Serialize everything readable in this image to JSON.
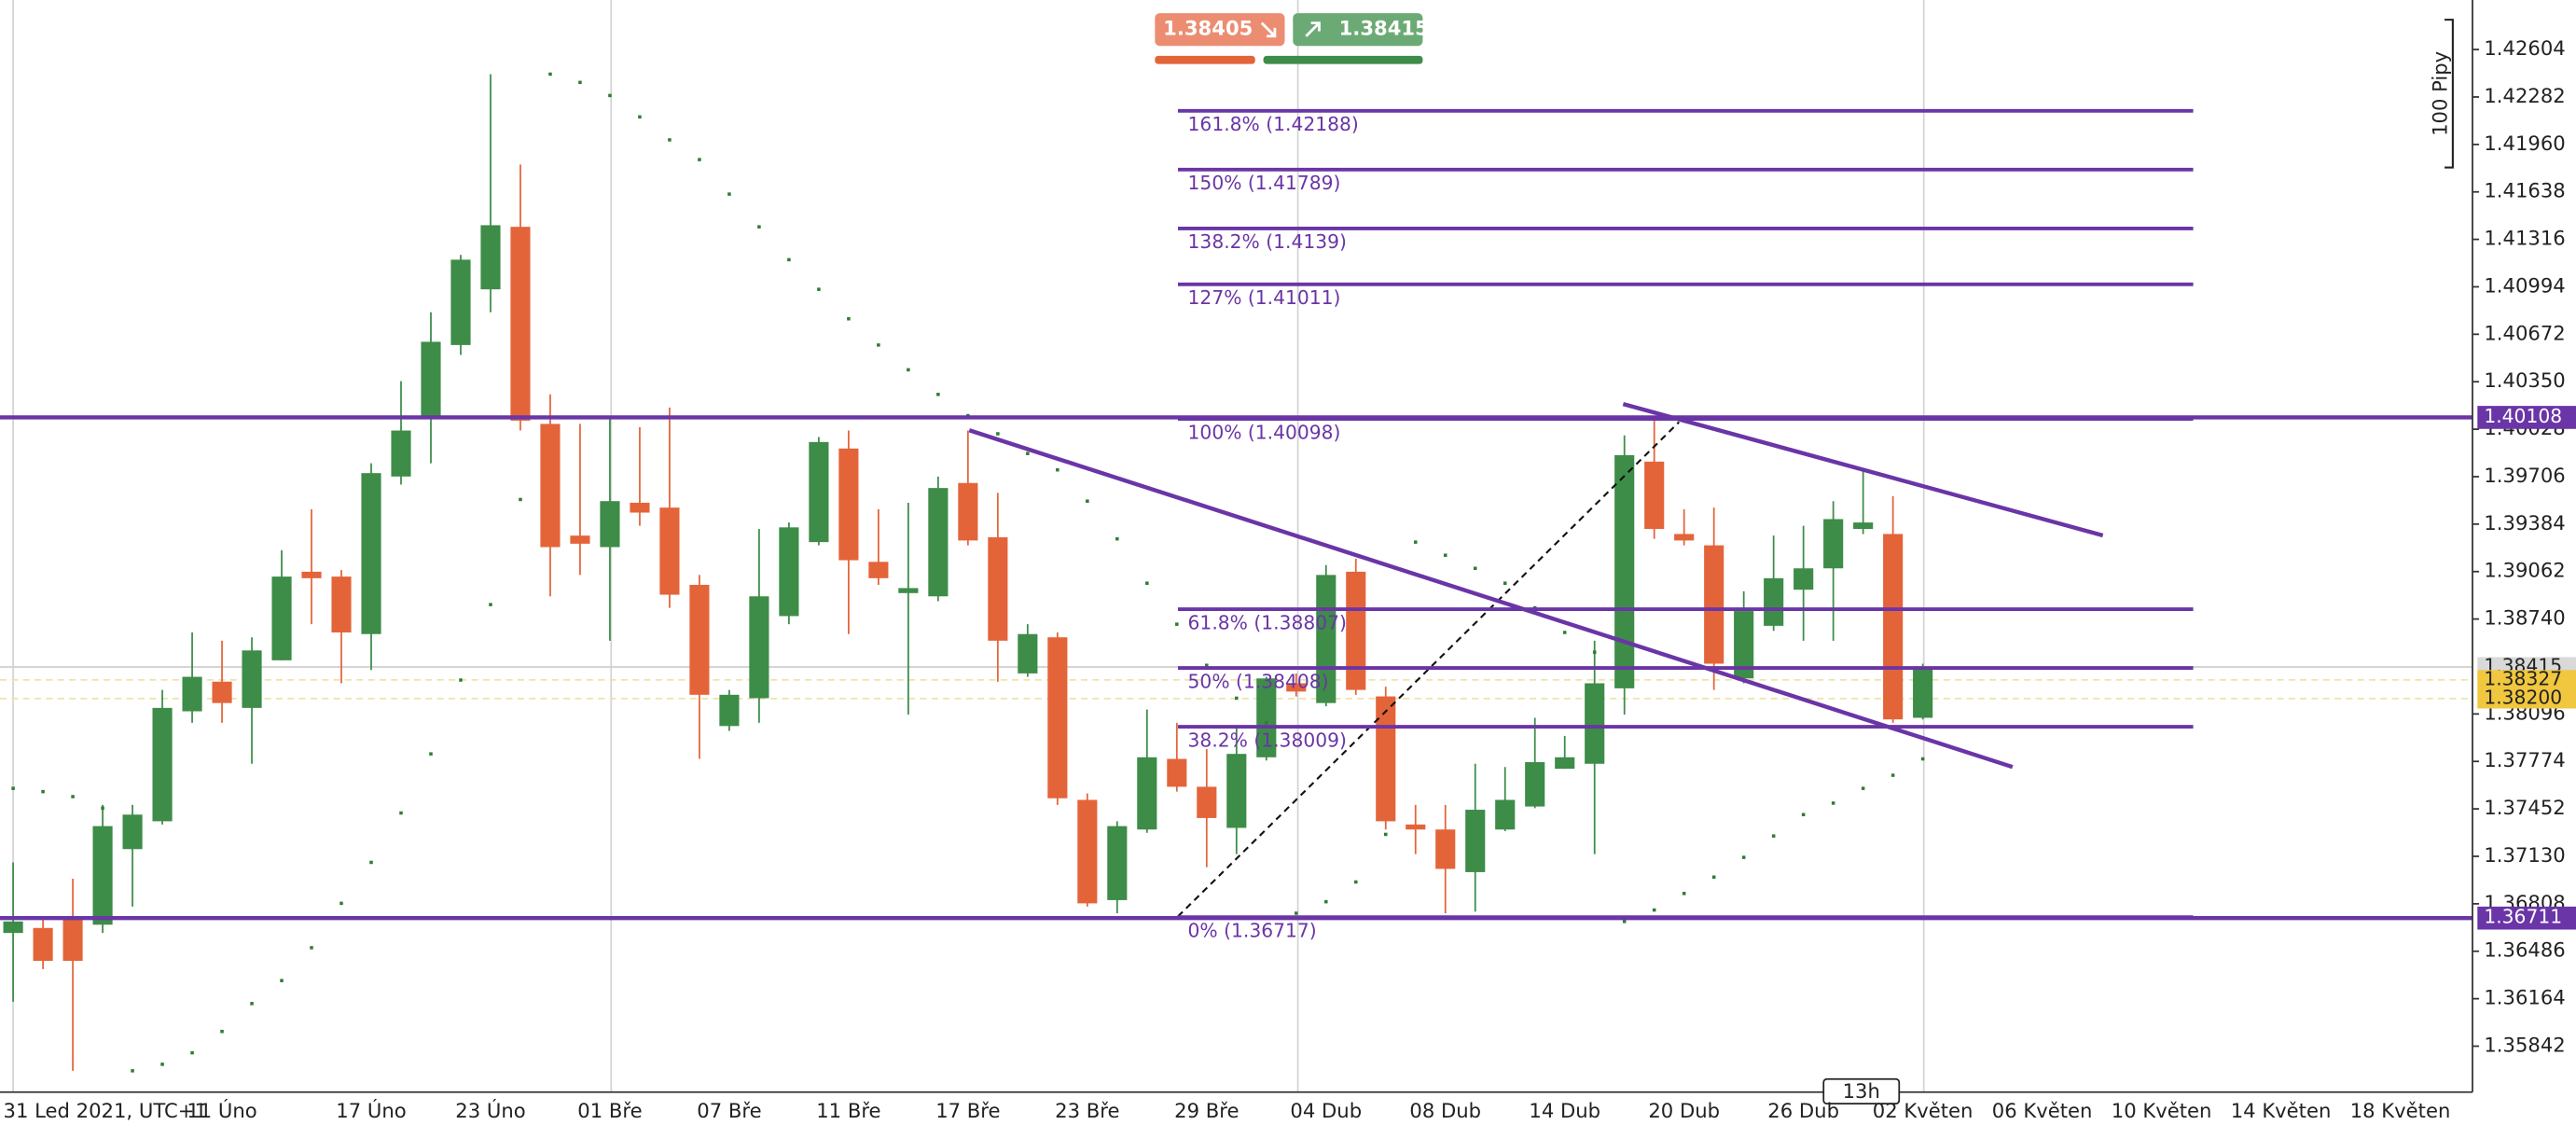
{
  "chart_data": {
    "type": "candlestick",
    "categories": [
      "31 Led 2021, UTC+1",
      null,
      null,
      null,
      null,
      null,
      null,
      "11 Úno",
      null,
      null,
      null,
      null,
      "17 Úno",
      null,
      null,
      null,
      "23 Úno",
      null,
      null,
      null,
      "01 Bře",
      null,
      null,
      null,
      "07 Bře",
      null,
      null,
      null,
      "11 Bře",
      null,
      null,
      null,
      "17 Bře",
      null,
      null,
      null,
      "23 Bře",
      null,
      null,
      null,
      "29 Bře",
      null,
      null,
      null,
      "04 Dub",
      null,
      null,
      null,
      "08 Dub",
      null,
      null,
      null,
      "14 Dub",
      null,
      null,
      null,
      "20 Dub",
      null,
      null,
      null,
      "26 Dub",
      null,
      null,
      null,
      "02 Květen",
      null,
      null,
      null,
      "06 Květen",
      null,
      null,
      null,
      "10 Květen",
      null,
      null,
      null,
      "14 Květen",
      null,
      null,
      null,
      "18 Květen"
    ],
    "open": [
      1.3661,
      1.36644,
      1.367,
      1.36666,
      1.37179,
      1.37368,
      1.38114,
      1.38315,
      1.38137,
      1.3846,
      1.39061,
      1.39028,
      1.38638,
      1.39707,
      1.40097,
      1.40599,
      1.40977,
      1.41401,
      1.40064,
      1.39306,
      1.39228,
      1.39529,
      1.39496,
      1.38972,
      1.38014,
      1.38203,
      1.3876,
      1.39262,
      1.39897,
      1.39128,
      1.38916,
      1.38894,
      1.39663,
      1.39295,
      1.38371,
      1.38616,
      1.37513,
      1.36833,
      1.37312,
      1.37791,
      1.37602,
      1.37323,
      1.37802,
      1.38304,
      1.3817,
      1.39061,
      1.38215,
      1.37346,
      1.37312,
      1.37023,
      1.37312,
      1.37468,
      1.37724,
      1.37758,
      1.3827,
      1.39808,
      1.39317,
      1.3924,
      1.38337,
      1.38694,
      1.38939,
      1.39084,
      1.39351,
      1.39317,
      1.3807,
      null,
      null,
      null,
      null,
      null,
      null,
      null,
      null,
      null,
      null,
      null,
      null,
      null,
      null,
      null,
      null
    ],
    "high": [
      1.37089,
      1.36722,
      1.36978,
      1.37479,
      1.37479,
      1.38259,
      1.38649,
      1.38593,
      1.38616,
      1.39206,
      1.39485,
      1.39072,
      1.39797,
      1.40354,
      1.40821,
      1.41211,
      1.42437,
      1.41824,
      1.40264,
      1.40064,
      1.40097,
      1.40042,
      1.40175,
      1.39039,
      1.38259,
      1.39351,
      1.39395,
      1.39975,
      1.40019,
      1.39485,
      1.39529,
      1.39707,
      1.40019,
      1.39596,
      1.38705,
      1.38649,
      1.37557,
      1.37368,
      1.38126,
      1.38036,
      1.37858,
      1.38014,
      1.38348,
      1.38371,
      1.39106,
      1.3915,
      1.38281,
      1.37479,
      1.37479,
      1.37758,
      1.37736,
      1.3807,
      1.37947,
      1.38593,
      1.39986,
      1.40086,
      1.39485,
      1.39496,
      1.38928,
      1.39306,
      1.39373,
      1.3954,
      1.39741,
      1.39574,
      1.38437,
      null,
      null,
      null,
      null,
      null,
      null,
      null,
      null,
      null,
      null,
      null,
      null,
      null,
      null,
      null,
      null
    ],
    "low": [
      1.36143,
      1.36365,
      1.35675,
      1.3661,
      1.36789,
      1.37346,
      1.38036,
      1.38036,
      1.37758,
      1.3846,
      1.38705,
      1.38304,
      1.38393,
      1.39652,
      1.39797,
      1.40532,
      1.40821,
      1.40019,
      1.38894,
      1.39039,
      1.38593,
      1.39373,
      1.38816,
      1.37791,
      1.37981,
      1.38036,
      1.38705,
      1.3924,
      1.38638,
      1.38972,
      1.38092,
      1.38861,
      1.3924,
      1.38315,
      1.38348,
      1.37479,
      1.36789,
      1.36744,
      1.3729,
      1.37569,
      1.37056,
      1.37145,
      1.3778,
      1.38215,
      1.38148,
      1.38226,
      1.37312,
      1.37145,
      1.36744,
      1.36755,
      1.37301,
      1.37457,
      1.37724,
      1.37145,
      1.38092,
      1.39284,
      1.3924,
      1.38259,
      1.38304,
      1.3866,
      1.38593,
      1.38593,
      1.39317,
      1.38036,
      1.38059,
      null,
      null,
      null,
      null,
      null,
      null,
      null,
      null,
      null,
      null,
      null,
      null,
      null,
      null,
      null,
      null
    ],
    "close": [
      1.36688,
      1.36421,
      1.36421,
      1.37335,
      1.37413,
      1.38137,
      1.38348,
      1.3817,
      1.38527,
      1.39028,
      1.39017,
      1.38649,
      1.3973,
      1.40019,
      1.40621,
      1.41178,
      1.41412,
      1.40086,
      1.39228,
      1.39251,
      1.3954,
      1.39462,
      1.38905,
      1.38226,
      1.38226,
      1.38894,
      1.39362,
      1.39941,
      1.39139,
      1.39017,
      1.3895,
      1.39629,
      1.39273,
      1.38593,
      1.38638,
      1.37524,
      1.36811,
      1.37335,
      1.37802,
      1.37602,
      1.3739,
      1.37825,
      1.38337,
      1.38248,
      1.39039,
      1.38259,
      1.37368,
      1.37312,
      1.37045,
      1.37446,
      1.37513,
      1.37769,
      1.37802,
      1.38304,
      1.39852,
      1.39351,
      1.39273,
      1.38437,
      1.38794,
      1.39017,
      1.39084,
      1.39418,
      1.39395,
      1.38059,
      1.38404,
      null,
      null,
      null,
      null,
      null,
      null,
      null,
      null,
      null,
      null,
      null,
      null,
      null,
      null,
      null,
      null
    ],
    "up_color": "#3d8c48",
    "down_color": "#e4643a",
    "sar": [
      1.37591,
      1.37569,
      1.37535,
      1.37457,
      1.35675,
      1.35719,
      1.35797,
      1.35942,
      1.36131,
      1.36287,
      1.3651,
      1.36811,
      1.37089,
      1.37424,
      1.37825,
      1.38326,
      1.38838,
      1.39551,
      1.42437,
      1.42381,
      1.42292,
      1.42147,
      1.41991,
      1.41857,
      1.41623,
      1.41401,
      1.41178,
      1.40977,
      1.40777,
      1.40599,
      1.40431,
      1.40264,
      1.4012,
      1.39997,
      1.39863,
      1.39752,
      1.3954,
      1.39284,
      1.38983,
      1.38705,
      1.38426,
      1.38203,
      1.38036,
      1.36744,
      1.36822,
      1.36956,
      1.37279,
      1.39262,
      1.39173,
      1.39084,
      1.38983,
      1.38816,
      1.38649,
      1.38515,
      1.36688,
      1.36766,
      1.36878,
      1.36989,
      1.37123,
      1.37268,
      1.37413,
      1.37491,
      1.37591,
      1.3768,
      1.37791,
      null,
      null,
      null,
      null,
      null,
      null,
      null,
      null,
      null,
      null,
      null,
      null,
      null,
      null,
      null,
      null
    ],
    "sar_color": "#2e7d32",
    "ylim": [
      1.3553,
      1.4294
    ],
    "yticks": [
      1.42604,
      1.42282,
      {
        "value": 1.4196,
        "label": "1.41960"
      },
      1.41638,
      1.41316,
      1.40994,
      1.40672,
      {
        "value": 1.4035,
        "label": "1.40350"
      },
      1.40028,
      1.39706,
      1.39384,
      1.39062,
      {
        "value": 1.3874,
        "label": "1.38740"
      },
      1.38096,
      1.37774,
      1.37452,
      {
        "value": 1.3713,
        "label": "1.37130"
      },
      1.36808,
      1.36486,
      1.36164,
      1.35842
    ],
    "levels": [
      1.40108,
      1.36711
    ],
    "level_color": "#6a35a6",
    "fib_levels": [
      {
        "value": 1.42188,
        "label": "161.8% (1.42188)"
      },
      {
        "value": 1.41789,
        "label": "150% (1.41789)"
      },
      {
        "value": 1.4139,
        "label": "138.2% (1.4139)"
      },
      {
        "value": 1.41011,
        "label": "127% (1.41011)"
      },
      {
        "value": 1.40098,
        "label": "100% (1.40098)"
      },
      {
        "value": 1.38807,
        "label": "61.8% (1.38807)"
      },
      {
        "value": 1.38408,
        "label": "50% (1.38408)"
      },
      {
        "value": 1.38009,
        "label": "38.2% (1.38009)"
      },
      {
        "value": 1.36717,
        "label": "0% (1.36717)"
      }
    ],
    "price_badges": [
      {
        "value": 1.38415,
        "color": "#d9d9d9"
      },
      {
        "value": 1.38327,
        "color": "#f0c73e"
      },
      {
        "value": 1.382,
        "label": "1.38200",
        "color": "#f0c73e"
      }
    ],
    "sell_price": 1.38405,
    "buy_price": 1.38415,
    "scale_label": "100 Pipy",
    "timeframe": "13h"
  }
}
